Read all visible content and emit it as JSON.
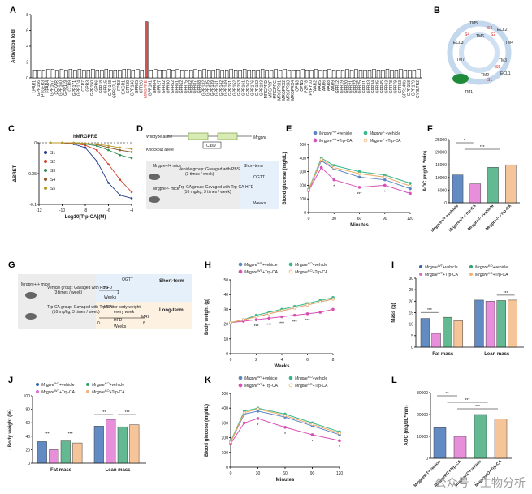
{
  "panels": {
    "A": "A",
    "B": "B",
    "C": "C",
    "D": "D",
    "E": "E",
    "F": "F",
    "G": "G",
    "H": "H",
    "I": "I",
    "J": "J",
    "K": "K",
    "L": "L"
  },
  "colors": {
    "wt_vehicle": "#5b86c6",
    "wt_trp": "#d94fb6",
    "ko_vehicle": "#36b88a",
    "ko_trp": "#f0a860",
    "bar_wt_vehicle": "#2e64b0",
    "bar_wt_trp": "#e06ad0",
    "bar_ko_vehicle": "#2fa36e",
    "bar_ko_trp": "#f2b277",
    "s1": "#1f3b8a",
    "s2": "#d0432e",
    "s3": "#2f8f4f",
    "s4": "#8a5a2e",
    "s5": "#b49a2a",
    "gpcr_highlight": "#d9534f",
    "diagram_blue": "#e6f0fb",
    "diagram_orange": "#fdf1e1"
  },
  "chart_data": [
    {
      "id": "A",
      "type": "bar",
      "ylabel": "Activation fold",
      "ylim": [
        0,
        8
      ],
      "yticks": [
        0,
        2,
        4,
        6,
        8
      ],
      "categories": [
        "LPAR1",
        "GPR156",
        "PTGER3",
        "FFAR4",
        "GPR157",
        "CCKAR",
        "GPR160",
        "GPR119",
        "CCR9",
        "GPR171",
        "GPR174",
        "CCR7",
        "GPR3",
        "GPR150",
        "GPR6",
        "GPR18",
        "GPR15",
        "GPR148",
        "GPR37L1",
        "FPR3",
        "OXGR1",
        "GPR39",
        "GPR146",
        "GPR85",
        "GPR26",
        "MRGPRE",
        "GPR101",
        "GPR84",
        "GPR27",
        "GPR32",
        "GPR50",
        "GPR52",
        "GPR61",
        "GPR62",
        "GPR75",
        "GPR82",
        "GPR87",
        "GPR88",
        "GPR132",
        "GPR135",
        "GPR139",
        "GPR141",
        "GPR142",
        "GPR149",
        "GPR151",
        "GPR152",
        "GPR153",
        "GPR161",
        "GPR162",
        "GPR176",
        "GPR182",
        "GPR183",
        "MRGPRD",
        "MRGPRF",
        "MRGPRG",
        "MRGPRX1",
        "MRGPRX2",
        "MRGPRX3",
        "MRGPRX4",
        "OPN3",
        "OPN5",
        "P2RY8",
        "P2RY10",
        "TAAR2",
        "TAAR5",
        "TAAR6",
        "TAAR8",
        "TAAR9",
        "GPR12",
        "GPR19",
        "GPR20",
        "GPR21",
        "GPR22",
        "GPR25",
        "GPR31",
        "GPR33",
        "GPR34",
        "GPR35",
        "GPR45",
        "GPR63",
        "GPR78",
        "GPR79",
        "GPR83",
        "GPR149b",
        "GPR158",
        "GPR179",
        "CYSLTR2"
      ],
      "values": [
        1.0,
        1.0,
        1.0,
        1.1,
        1.1,
        1.0,
        1.1,
        1.0,
        1.1,
        1.0,
        1.1,
        1.0,
        1.0,
        1.1,
        1.0,
        1.0,
        1.1,
        1.0,
        1.0,
        1.0,
        1.1,
        1.1,
        1.0,
        1.1,
        1.0,
        7.1,
        1.0,
        1.1,
        1.0,
        1.0,
        1.1,
        1.0,
        1.1,
        1.0,
        1.0,
        1.0,
        1.1,
        1.0,
        1.1,
        1.0,
        1.0,
        1.1,
        1.0,
        1.0,
        1.1,
        1.0,
        1.0,
        1.1,
        1.0,
        1.0,
        1.0,
        1.1,
        1.0,
        1.0,
        1.1,
        1.0,
        1.1,
        1.0,
        1.0,
        1.0,
        1.1,
        1.0,
        1.0,
        1.1,
        1.0,
        1.0,
        1.1,
        1.0,
        1.0,
        1.0,
        1.1,
        1.0,
        1.1,
        1.0,
        1.0,
        1.0,
        1.1,
        1.0,
        1.0,
        1.1,
        1.0,
        1.0,
        1.1,
        1.0,
        1.0,
        1.0,
        1.1
      ],
      "highlight": "MRGPRE"
    },
    {
      "id": "C",
      "type": "line",
      "title": "hMRGPRE",
      "xlabel": "Log10[Trp-CA](M)",
      "ylabel": "ΔBRET",
      "xlim": [
        -12,
        -4
      ],
      "ylim": [
        -0.1,
        0.0
      ],
      "xticks": [
        -12,
        -10,
        -8,
        -6,
        -4
      ],
      "yticks": [
        -0.1,
        -0.05,
        0.0
      ],
      "series": [
        {
          "name": "S1",
          "x": [
            -11,
            -10,
            -9,
            -8,
            -7,
            -6,
            -5,
            -4
          ],
          "y": [
            0.0,
            0.0,
            -0.002,
            -0.008,
            -0.03,
            -0.065,
            -0.085,
            -0.09
          ]
        },
        {
          "name": "S2",
          "x": [
            -11,
            -10,
            -9,
            -8,
            -7,
            -6,
            -5,
            -4
          ],
          "y": [
            0.0,
            0.0,
            -0.001,
            -0.004,
            -0.012,
            -0.035,
            -0.06,
            -0.08
          ]
        },
        {
          "name": "S3",
          "x": [
            -11,
            -10,
            -9,
            -8,
            -7,
            -6,
            -5,
            -4
          ],
          "y": [
            0.0,
            0.0,
            0.0,
            -0.002,
            -0.005,
            -0.012,
            -0.02,
            -0.025
          ]
        },
        {
          "name": "S4",
          "x": [
            -11,
            -10,
            -9,
            -8,
            -7,
            -6,
            -5,
            -4
          ],
          "y": [
            0.0,
            0.0,
            0.0,
            -0.001,
            -0.003,
            -0.008,
            -0.012,
            -0.015
          ]
        },
        {
          "name": "S5",
          "x": [
            -11,
            -10,
            -9,
            -8,
            -7,
            -6,
            -5,
            -4
          ],
          "y": [
            0.0,
            0.0,
            0.0,
            -0.001,
            -0.002,
            -0.005,
            -0.008,
            -0.01
          ]
        }
      ]
    },
    {
      "id": "E",
      "type": "line",
      "xlabel": "Minutes",
      "ylabel": "Blood glucose (mg/dL)",
      "xlim": [
        0,
        120
      ],
      "ylim": [
        0,
        500
      ],
      "xticks": [
        0,
        30,
        60,
        90,
        120
      ],
      "yticks": [
        0,
        100,
        200,
        300,
        400,
        500
      ],
      "series": [
        {
          "name": "Mrgpre+/+ +vehicle",
          "x": [
            0,
            15,
            30,
            60,
            90,
            120
          ],
          "y": [
            165,
            380,
            320,
            260,
            240,
            175
          ]
        },
        {
          "name": "Mrgpre+/+ +Trp-CA",
          "x": [
            0,
            15,
            30,
            60,
            90,
            120
          ],
          "y": [
            160,
            330,
            240,
            185,
            200,
            140
          ]
        },
        {
          "name": "Mrgpre-/- +vehicle",
          "x": [
            0,
            15,
            30,
            60,
            90,
            120
          ],
          "y": [
            170,
            400,
            345,
            300,
            275,
            215
          ]
        },
        {
          "name": "Mrgpre-/- +Trp-CA",
          "x": [
            0,
            15,
            30,
            60,
            90,
            120
          ],
          "y": [
            165,
            390,
            330,
            285,
            260,
            195
          ]
        }
      ],
      "annotations": [
        "*",
        "***",
        "*"
      ]
    },
    {
      "id": "F",
      "type": "bar",
      "ylabel": "AOC (mg/dL*min)",
      "ylim": [
        0,
        25000
      ],
      "yticks": [
        0,
        5000,
        10000,
        15000,
        20000,
        25000
      ],
      "categories": [
        "Mrgpre+/+ +vehicle",
        "Mrgpre+/+ +Trp-CA",
        "Mrgpre-/- +vehicle",
        "Mrgpre-/- +Trp-CA"
      ],
      "values": [
        11000,
        7500,
        14000,
        15000
      ],
      "annotations": [
        "*",
        "***"
      ]
    },
    {
      "id": "H",
      "type": "line",
      "xlabel": "Weeks",
      "ylabel": "Body weight (g)",
      "xlim": [
        0,
        8
      ],
      "ylim": [
        0,
        50
      ],
      "xticks": [
        0,
        2,
        4,
        6,
        8
      ],
      "yticks": [
        0,
        10,
        20,
        30,
        40,
        50
      ],
      "series": [
        {
          "name": "MrgpreWT+vehicle",
          "x": [
            0,
            1,
            2,
            3,
            4,
            5,
            6,
            7,
            8
          ],
          "y": [
            21,
            23,
            25,
            27,
            29,
            31,
            33,
            35,
            37
          ]
        },
        {
          "name": "MrgpreWT+Trp-CA",
          "x": [
            0,
            1,
            2,
            3,
            4,
            5,
            6,
            7,
            8
          ],
          "y": [
            21,
            22,
            23,
            24,
            25,
            26,
            27,
            28,
            30
          ]
        },
        {
          "name": "MrgpreKO+vehicle",
          "x": [
            0,
            1,
            2,
            3,
            4,
            5,
            6,
            7,
            8
          ],
          "y": [
            21,
            23,
            26,
            28,
            30,
            32,
            34,
            36,
            38
          ]
        },
        {
          "name": "MrgpreKO+Trp-CA",
          "x": [
            0,
            1,
            2,
            3,
            4,
            5,
            6,
            7,
            8
          ],
          "y": [
            21,
            23,
            25,
            27,
            29,
            31,
            33,
            35,
            37
          ]
        }
      ],
      "annotations": [
        "***",
        "***",
        "***",
        "***",
        "***"
      ]
    },
    {
      "id": "I",
      "type": "bar",
      "ylabel": "Mass (g)",
      "ylim": [
        0,
        30
      ],
      "yticks": [
        0,
        5,
        10,
        15,
        20,
        25,
        30
      ],
      "groups": [
        "Fat mass",
        "Lean mass"
      ],
      "series": [
        {
          "name": "MrgpreWT+vehicle",
          "values": [
            12.5,
            20.5
          ]
        },
        {
          "name": "MrgpreWT+Trp-CA",
          "values": [
            6.0,
            20.0
          ]
        },
        {
          "name": "MrgpreKO+vehicle",
          "values": [
            13.0,
            20.3
          ]
        },
        {
          "name": "MrgpreKO+Trp-CA",
          "values": [
            11.5,
            20.5
          ]
        }
      ],
      "annotations": [
        "***",
        "***"
      ]
    },
    {
      "id": "J",
      "type": "bar",
      "ylabel": "/ Body weight (%)",
      "ylim": [
        0,
        100
      ],
      "yticks": [
        0,
        20,
        40,
        60,
        80,
        100
      ],
      "groups": [
        "Fat mass",
        "Lean mass"
      ],
      "series": [
        {
          "name": "MrgpreWT+vehicle",
          "values": [
            32,
            55
          ]
        },
        {
          "name": "MrgpreWT+Trp-CA",
          "values": [
            20,
            65
          ]
        },
        {
          "name": "MrgpreKO+vehicle",
          "values": [
            33,
            54
          ]
        },
        {
          "name": "MrgpreKO+Trp-CA",
          "values": [
            30,
            57
          ]
        }
      ],
      "annotations": [
        "***",
        "***",
        "***",
        "***"
      ]
    },
    {
      "id": "K",
      "type": "line",
      "xlabel": "Minutes",
      "ylabel": "Blood glucose (mg/dL)",
      "xlim": [
        0,
        120
      ],
      "ylim": [
        0,
        500
      ],
      "xticks": [
        0,
        30,
        60,
        90,
        120
      ],
      "yticks": [
        0,
        100,
        200,
        300,
        400,
        500
      ],
      "series": [
        {
          "name": "MrgpreWT+vehicle",
          "x": [
            0,
            15,
            30,
            60,
            90,
            120
          ],
          "y": [
            170,
            360,
            380,
            340,
            280,
            220
          ]
        },
        {
          "name": "MrgpreWT+Trp-CA",
          "x": [
            0,
            15,
            30,
            60,
            90,
            120
          ],
          "y": [
            160,
            300,
            330,
            270,
            220,
            180
          ]
        },
        {
          "name": "MrgpreKO+vehicle",
          "x": [
            0,
            15,
            30,
            60,
            90,
            120
          ],
          "y": [
            175,
            380,
            400,
            360,
            300,
            240
          ]
        },
        {
          "name": "MrgpreKO+Trp-CA",
          "x": [
            0,
            15,
            30,
            60,
            90,
            120
          ],
          "y": [
            170,
            370,
            395,
            350,
            290,
            230
          ]
        }
      ],
      "annotations": [
        "*",
        "*",
        "*",
        "*"
      ]
    },
    {
      "id": "L",
      "type": "bar",
      "ylabel": "AOC (mg/dL*min)",
      "ylim": [
        0,
        30000
      ],
      "yticks": [
        0,
        10000,
        20000,
        30000
      ],
      "categories": [
        "MrgpreWT+vehicle",
        "MrgpreWT+Trp-CA",
        "MrgpreKO+vehicle",
        "MrgpreKO+Trp-CA"
      ],
      "values": [
        14000,
        10000,
        20000,
        18000
      ],
      "annotations": [
        "**",
        "***",
        "***"
      ]
    }
  ],
  "legend": {
    "E": {
      "a": "Mrgpre",
      "a_sup": "+/+",
      "a_suf": "+vehicle",
      "b": "Mrgpre",
      "b_sup": "-/-",
      "b_suf": "+vehicle",
      "c": "Mrgpre",
      "c_sup": "+/+",
      "c_suf": "+Trp-CA",
      "d": "Mrgpre",
      "d_sup": "-/-",
      "d_suf": "+Trp-CA"
    },
    "HK": {
      "a": "Mrgpre",
      "a_sup": "WT",
      "a_suf": "+vehicle",
      "b": "Mrgpre",
      "b_sup": "KO",
      "b_suf": "+vehicle",
      "c": "Mrgpre",
      "c_sup": "WT",
      "c_suf": "+Trp-CA",
      "d": "Mrgpre",
      "d_sup": "KO",
      "d_suf": "+Trp-CA"
    },
    "C": {
      "s1": "S1",
      "s2": "S2",
      "s3": "S3",
      "s4": "S4",
      "s5": "S5"
    }
  },
  "diagram_B": {
    "labels": [
      "TM5",
      "TM6",
      "ECL2",
      "ECL3",
      "TM4",
      "TM7",
      "TM3",
      "TM2",
      "ECL1",
      "TM1",
      "S1",
      "S2",
      "S3",
      "S4",
      "S5"
    ]
  },
  "diagram_D": {
    "wildtype": "Wildtype allele",
    "knockout": "Knockout allele",
    "gene": "Mrgpre",
    "tool": "Cas9",
    "mice_wt": "Mrgpre+/+ mice",
    "mice_ko": "Mrgpre-/- mice",
    "vehicle": "Vehicle group: Gavaged with PBS",
    "vehicle_sub": "(3 times / week)",
    "trp": "Trp-CA group: Gavaged with Trp-CA",
    "trp_sub": "(10 mg/kg, 3 times / week)",
    "hfd": "HFD",
    "weeks": "Weeks",
    "short": "Short-term",
    "ogtt": "OGTT"
  },
  "diagram_G": {
    "mice": "Mrgpre+/+ mice",
    "vehicle": "Vehicle group: Gavaged with PBS",
    "vehicle_sub": "(3 times / week)",
    "trp": "Trp-CA group: Gavaged with Trp-CA",
    "trp_sub": "(10 mg/kg, 3 times / week)",
    "short": "Short-term",
    "long": "Long-term",
    "ogtt": "OGTT",
    "hfd": "HFD",
    "weeks": "Weeks",
    "monitor": "Monitor body weight",
    "monitor_sub": "every week",
    "mri": "MRI",
    "t0": "0",
    "t1": "1",
    "t8": "8"
  },
  "group_labels": [
    "Fat mass",
    "Lean mass"
  ],
  "watermark": "公众号 · 生物分析"
}
